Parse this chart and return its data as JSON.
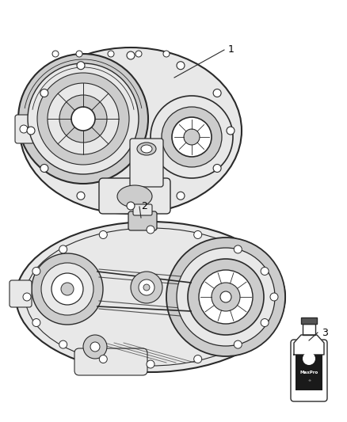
{
  "background_color": "#ffffff",
  "fig_width": 4.38,
  "fig_height": 5.33,
  "dpi": 100,
  "lc": "#2a2a2a",
  "lc_light": "#888888",
  "lc_mid": "#555555",
  "fill_light": "#e8e8e8",
  "fill_mid": "#cccccc",
  "fill_dark": "#aaaaaa",
  "label1": "1",
  "label2": "2",
  "label3": "3",
  "text_fontsize": 9
}
